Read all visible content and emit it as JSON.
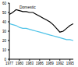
{
  "chart_data": {
    "type": "line",
    "x": [
      1977,
      1978,
      1979,
      1980,
      1981,
      1982,
      1983,
      1984,
      1985,
      1986,
      1987,
      1988,
      1989,
      1990,
      1991,
      1992,
      1993,
      1994,
      1995,
      1996
    ],
    "series": [
      {
        "name": "Domestic",
        "color": "#000000",
        "values": [
          48,
          50,
          53,
          52,
          51,
          51,
          50,
          50,
          48,
          46,
          44,
          42,
          40,
          37,
          33,
          29,
          30,
          33,
          36,
          38
        ]
      },
      {
        "color": "#4fc3e8",
        "values": [
          38,
          37,
          36,
          34,
          33,
          33,
          32,
          31,
          30,
          29,
          28,
          27,
          26,
          25,
          24,
          23,
          22,
          21,
          21,
          20
        ]
      }
    ],
    "xlim": [
      1977,
      1996
    ],
    "xticks": [
      1977,
      1980,
      1983,
      1986,
      1989,
      1992,
      1995
    ],
    "ylim": [
      0,
      60
    ],
    "yticks": [
      0,
      10,
      20,
      30,
      40,
      50,
      60
    ],
    "grid": false
  }
}
